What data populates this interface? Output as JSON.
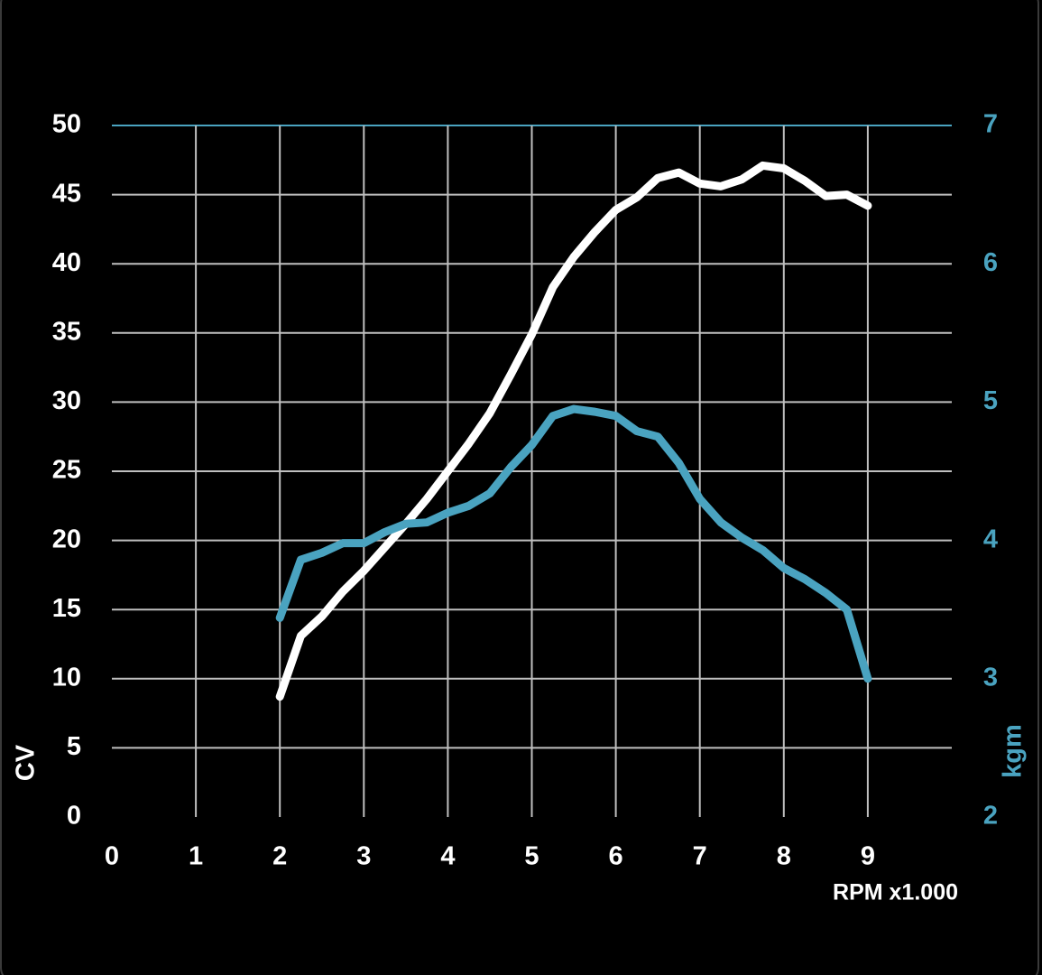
{
  "chart_data": {
    "type": "line",
    "x_label": "RPM x1.000",
    "y_label": "CV",
    "y2_label": "kgm",
    "x": [
      2,
      2.25,
      2.5,
      2.75,
      3,
      3.25,
      3.5,
      3.75,
      4,
      4.25,
      4.5,
      4.75,
      5,
      5.25,
      5.5,
      5.75,
      6,
      6.25,
      6.5,
      6.75,
      7,
      7.25,
      7.5,
      7.75,
      8,
      8.25,
      8.5,
      8.75,
      9
    ],
    "series": [
      {
        "name": "CV",
        "color": "#ffffff",
        "values": [
          8.7,
          13.1,
          14.5,
          16.3,
          17.8,
          19.5,
          21.2,
          23.0,
          25.0,
          27.0,
          29.2,
          32.0,
          34.9,
          38.3,
          40.5,
          42.3,
          43.9,
          44.8,
          46.2,
          46.6,
          45.8,
          45.6,
          46.1,
          47.1,
          46.9,
          46.0,
          44.9,
          45.0,
          44.2
        ]
      },
      {
        "name": "kgm",
        "color": "#4aa3c0",
        "axis": "y2",
        "values": [
          3.44,
          3.86,
          3.91,
          3.98,
          3.98,
          4.06,
          4.12,
          4.13,
          4.2,
          4.25,
          4.34,
          4.53,
          4.69,
          4.9,
          4.95,
          4.93,
          4.9,
          4.79,
          4.75,
          4.56,
          4.3,
          4.13,
          4.02,
          3.93,
          3.8,
          3.72,
          3.62,
          3.5,
          3.0
        ]
      }
    ],
    "xlim": [
      0,
      10
    ],
    "xticks": [
      0,
      1,
      2,
      3,
      4,
      5,
      6,
      7,
      8,
      9
    ],
    "ylim": [
      0,
      50
    ],
    "yticks": [
      0,
      5,
      10,
      15,
      20,
      25,
      30,
      35,
      40,
      45,
      50
    ],
    "y2lim": [
      2,
      7
    ],
    "y2ticks": [
      2,
      3,
      4,
      5,
      6,
      7
    ],
    "grid": true
  }
}
